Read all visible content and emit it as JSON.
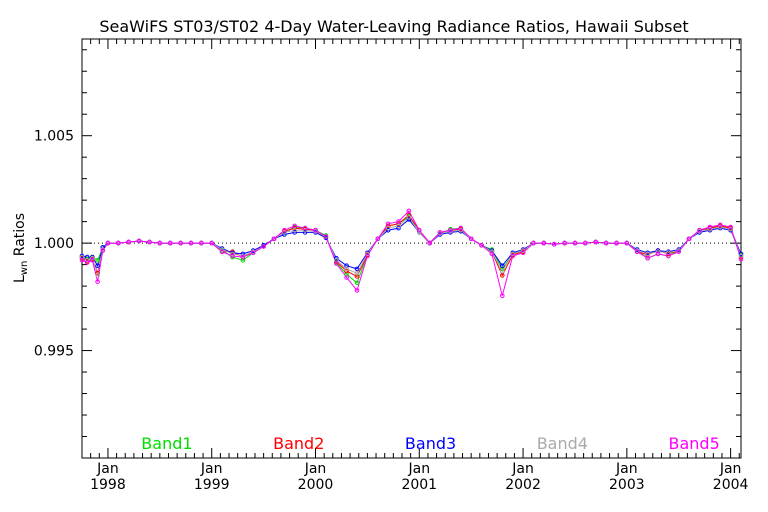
{
  "chart_data": {
    "type": "line",
    "title": "SeaWiFS ST03/ST02 4-Day Water-Leaving Radiance Ratios, Hawaii Subset",
    "ylabel_main": "L",
    "ylabel_sub": "wn",
    "ylabel_rest": " Ratios",
    "xlabel": "",
    "xlim": [
      1997.75,
      2004.1
    ],
    "ylim": [
      0.99,
      1.0095
    ],
    "yticks": [
      {
        "value": 1.005,
        "label": "1.005"
      },
      {
        "value": 1.0,
        "label": "1.000"
      },
      {
        "value": 0.995,
        "label": "0.995"
      }
    ],
    "xticks": [
      {
        "value": 1998,
        "month": "Jan",
        "year": "1998"
      },
      {
        "value": 1999,
        "month": "Jan",
        "year": "1999"
      },
      {
        "value": 2000,
        "month": "Jan",
        "year": "2000"
      },
      {
        "value": 2001,
        "month": "Jan",
        "year": "2001"
      },
      {
        "value": 2002,
        "month": "Jan",
        "year": "2002"
      },
      {
        "value": 2003,
        "month": "Jan",
        "year": "2003"
      },
      {
        "value": 2004,
        "month": "Jan",
        "year": "2004"
      }
    ],
    "reference_line": 1.0,
    "x": [
      1997.75,
      1997.8,
      1997.85,
      1997.9,
      1997.95,
      1998.0,
      1998.1,
      1998.2,
      1998.3,
      1998.4,
      1998.5,
      1998.6,
      1998.7,
      1998.8,
      1998.9,
      1999.0,
      1999.1,
      1999.2,
      1999.3,
      1999.4,
      1999.5,
      1999.6,
      1999.7,
      1999.8,
      1999.9,
      2000.0,
      2000.1,
      2000.2,
      2000.3,
      2000.4,
      2000.5,
      2000.6,
      2000.7,
      2000.8,
      2000.9,
      2001.0,
      2001.1,
      2001.2,
      2001.3,
      2001.4,
      2001.5,
      2001.6,
      2001.7,
      2001.8,
      2001.9,
      2002.0,
      2002.1,
      2002.2,
      2002.3,
      2002.4,
      2002.5,
      2002.6,
      2002.7,
      2002.8,
      2002.9,
      2003.0,
      2003.1,
      2003.2,
      2003.3,
      2003.4,
      2003.5,
      2003.6,
      2003.7,
      2003.8,
      2003.9,
      2004.0,
      2004.1
    ],
    "series": [
      {
        "name": "Band1",
        "color": "#00dd00",
        "values": [
          0.99935,
          0.99925,
          0.99935,
          0.9992,
          0.9998,
          1.0,
          1.0,
          1.00005,
          1.0001,
          1.00005,
          1.0,
          1.0,
          1.0,
          1.0,
          1.0,
          1.0,
          0.99965,
          0.99935,
          0.9992,
          0.99955,
          0.99985,
          1.0002,
          1.0005,
          1.00075,
          1.0007,
          1.0006,
          1.00035,
          0.9991,
          0.99855,
          0.99815,
          0.99945,
          1.0002,
          1.0008,
          1.0009,
          1.00125,
          1.0005,
          1.0,
          1.00045,
          1.00065,
          1.0007,
          1.0002,
          0.9999,
          0.9997,
          0.9988,
          0.9995,
          0.99965,
          1.0,
          1.0,
          0.99995,
          1.0,
          1.0,
          1.0,
          1.00005,
          1.0,
          1.0,
          1.0,
          0.99965,
          0.9993,
          0.9995,
          0.9994,
          0.99965,
          1.0002,
          1.0006,
          1.0007,
          1.0008,
          1.0007,
          0.99945
        ]
      },
      {
        "name": "Band2",
        "color": "#ff0000",
        "values": [
          0.9993,
          0.99915,
          0.99925,
          0.9986,
          0.9997,
          1.0,
          1.0,
          1.00005,
          1.0001,
          1.00005,
          1.0,
          1.0,
          1.0,
          1.0,
          1.0,
          1.0,
          0.9996,
          0.9996,
          0.99935,
          0.9996,
          0.99985,
          1.0002,
          1.00055,
          1.0007,
          1.00065,
          1.0006,
          1.0003,
          0.99915,
          0.9987,
          0.99845,
          0.99945,
          1.0002,
          1.0008,
          1.0009,
          1.0013,
          1.0006,
          1.0,
          1.0005,
          1.0006,
          1.00065,
          1.0002,
          0.9999,
          0.9996,
          0.9985,
          0.99945,
          0.9996,
          1.0,
          1.0,
          0.99995,
          1.0,
          1.0,
          1.0,
          1.00005,
          1.0,
          1.0,
          1.0,
          0.9996,
          0.99945,
          0.99965,
          0.9995,
          0.99965,
          1.0002,
          1.0006,
          1.0007,
          1.0008,
          1.0007,
          0.99935
        ]
      },
      {
        "name": "Band3",
        "color": "#0000ff",
        "values": [
          0.9994,
          0.99935,
          0.99935,
          0.99895,
          0.9998,
          1.0,
          1.0,
          1.00005,
          1.0001,
          1.00005,
          1.0,
          1.0,
          1.0,
          1.0,
          1.0,
          1.0,
          0.99975,
          0.99955,
          0.9995,
          0.99965,
          0.9999,
          1.0002,
          1.0004,
          1.0005,
          1.0005,
          1.0005,
          1.00025,
          0.9993,
          0.99895,
          0.9988,
          0.99955,
          1.0002,
          1.0006,
          1.0007,
          1.0011,
          1.0005,
          1.0,
          1.0004,
          1.0005,
          1.00055,
          1.0002,
          0.9999,
          0.99965,
          0.99895,
          0.99955,
          0.9997,
          1.0,
          1.0,
          0.99995,
          1.0,
          1.0,
          1.0,
          1.00005,
          1.0,
          1.0,
          1.0,
          0.9997,
          0.99955,
          0.99965,
          0.9996,
          0.9997,
          1.0002,
          1.0005,
          1.0006,
          1.0007,
          1.0006,
          0.9995
        ]
      },
      {
        "name": "Band4",
        "color": "#aaaaaa",
        "values": [
          0.99935,
          0.9992,
          0.9993,
          0.9985,
          0.9997,
          1.0,
          1.0,
          1.00005,
          1.0001,
          1.00005,
          1.0,
          1.0,
          1.0,
          1.0,
          1.0,
          1.0,
          0.9997,
          0.9995,
          0.9994,
          0.9996,
          0.99985,
          1.0002,
          1.0005,
          1.0006,
          1.0006,
          1.00055,
          1.0003,
          0.9992,
          0.9988,
          0.9986,
          0.9995,
          1.0002,
          1.0007,
          1.0008,
          1.0012,
          1.0005,
          1.0,
          1.00045,
          1.00055,
          1.0006,
          1.0002,
          0.9999,
          0.9996,
          0.9987,
          0.9995,
          0.99965,
          1.0,
          1.0,
          0.99995,
          1.0,
          1.0,
          1.0,
          1.00005,
          1.0,
          1.0,
          1.0,
          0.99965,
          0.9995,
          0.9996,
          0.99955,
          0.99965,
          1.0002,
          1.00055,
          1.00065,
          1.00075,
          1.00065,
          0.9994
        ]
      },
      {
        "name": "Band5",
        "color": "#ff00ff",
        "values": [
          0.9992,
          0.9991,
          0.9992,
          0.9982,
          0.99965,
          1.0,
          1.0,
          1.00005,
          1.0001,
          1.00005,
          1.0,
          1.0,
          1.0,
          1.0,
          1.0,
          1.0,
          0.9996,
          0.9994,
          0.99935,
          0.99955,
          0.99985,
          1.0002,
          1.0006,
          1.0008,
          1.0007,
          1.0006,
          1.0003,
          0.99905,
          0.9984,
          0.9978,
          0.9994,
          1.0002,
          1.0009,
          1.001,
          1.0015,
          1.0006,
          1.0,
          1.0005,
          1.0006,
          1.0007,
          1.0002,
          0.9999,
          0.9995,
          0.99755,
          0.9994,
          0.99955,
          1.0,
          1.0,
          0.99995,
          1.0,
          1.0,
          1.0,
          1.00005,
          1.0,
          1.0,
          1.0,
          0.9996,
          0.9993,
          0.9995,
          0.9994,
          0.9996,
          1.0002,
          1.0006,
          1.00075,
          1.00085,
          1.00075,
          0.99925
        ]
      }
    ]
  }
}
